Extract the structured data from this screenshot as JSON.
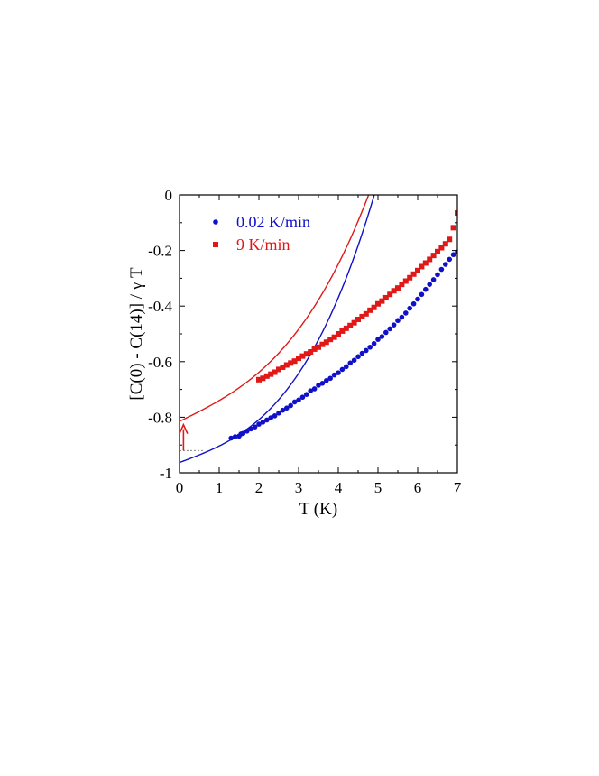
{
  "chart_data": {
    "type": "scatter",
    "xlabel": "T (K)",
    "ylabel": "[C(0) - C(14)] / γ T",
    "xlim": [
      0,
      7
    ],
    "ylim": [
      -1,
      0
    ],
    "xticks": [
      "0",
      "1",
      "2",
      "3",
      "4",
      "5",
      "6",
      "7"
    ],
    "yticks": [
      "0",
      "-0.2",
      "-0.4",
      "-0.6",
      "-0.8",
      "-1"
    ],
    "grid": false,
    "legend_placement": "top-left",
    "series": [
      {
        "name": "0.02 K/min",
        "color": "#1010c8",
        "marker": "circle",
        "fit": {
          "y0": -0.963,
          "a": 0.0535,
          "b": 0.00593
        },
        "x": [
          1.3,
          1.4,
          1.5,
          1.55,
          1.6,
          1.7,
          1.8,
          1.9,
          2.0,
          2.1,
          2.2,
          2.3,
          2.4,
          2.5,
          2.6,
          2.7,
          2.8,
          2.9,
          3.0,
          3.1,
          3.2,
          3.3,
          3.4,
          3.5,
          3.6,
          3.7,
          3.8,
          3.9,
          4.0,
          4.1,
          4.2,
          4.3,
          4.4,
          4.5,
          4.6,
          4.7,
          4.8,
          4.9,
          5.0,
          5.1,
          5.2,
          5.3,
          5.4,
          5.5,
          5.6,
          5.7,
          5.8,
          5.9,
          6.0,
          6.1,
          6.2,
          6.3,
          6.4,
          6.5,
          6.6,
          6.7,
          6.8,
          6.9,
          7.0
        ],
        "y": [
          -0.875,
          -0.87,
          -0.868,
          -0.86,
          -0.858,
          -0.85,
          -0.842,
          -0.835,
          -0.825,
          -0.818,
          -0.81,
          -0.802,
          -0.795,
          -0.785,
          -0.775,
          -0.767,
          -0.758,
          -0.745,
          -0.738,
          -0.728,
          -0.718,
          -0.705,
          -0.698,
          -0.685,
          -0.678,
          -0.668,
          -0.66,
          -0.648,
          -0.64,
          -0.628,
          -0.618,
          -0.605,
          -0.595,
          -0.582,
          -0.57,
          -0.56,
          -0.548,
          -0.535,
          -0.52,
          -0.51,
          -0.495,
          -0.482,
          -0.468,
          -0.452,
          -0.44,
          -0.425,
          -0.408,
          -0.392,
          -0.375,
          -0.358,
          -0.34,
          -0.322,
          -0.305,
          -0.287,
          -0.268,
          -0.25,
          -0.232,
          -0.215,
          -0.205
        ]
      },
      {
        "name": "9 K/min",
        "color": "#e01818",
        "marker": "square",
        "fit": {
          "y0": -0.815,
          "a": 0.0706,
          "b": 0.00443
        },
        "x": [
          2.0,
          2.1,
          2.2,
          2.3,
          2.4,
          2.5,
          2.6,
          2.7,
          2.8,
          2.9,
          3.0,
          3.1,
          3.2,
          3.3,
          3.4,
          3.5,
          3.6,
          3.7,
          3.8,
          3.9,
          4.0,
          4.1,
          4.2,
          4.3,
          4.4,
          4.5,
          4.6,
          4.7,
          4.8,
          4.9,
          5.0,
          5.1,
          5.2,
          5.3,
          5.4,
          5.5,
          5.6,
          5.7,
          5.8,
          5.9,
          6.0,
          6.1,
          6.2,
          6.3,
          6.4,
          6.5,
          6.6,
          6.7,
          6.8,
          6.9,
          7.0
        ],
        "y": [
          -0.665,
          -0.66,
          -0.652,
          -0.645,
          -0.638,
          -0.628,
          -0.62,
          -0.612,
          -0.605,
          -0.598,
          -0.588,
          -0.58,
          -0.572,
          -0.565,
          -0.555,
          -0.548,
          -0.538,
          -0.53,
          -0.52,
          -0.512,
          -0.5,
          -0.49,
          -0.48,
          -0.47,
          -0.46,
          -0.448,
          -0.438,
          -0.428,
          -0.415,
          -0.405,
          -0.392,
          -0.382,
          -0.37,
          -0.358,
          -0.345,
          -0.335,
          -0.322,
          -0.31,
          -0.298,
          -0.285,
          -0.272,
          -0.258,
          -0.245,
          -0.232,
          -0.218,
          -0.204,
          -0.19,
          -0.176,
          -0.16,
          -0.118,
          -0.065
        ]
      }
    ],
    "annotations": {
      "gap_arrow": {
        "x": 0.1,
        "from_y": -0.92,
        "to_y": -0.83,
        "color": "#e01818"
      },
      "dotted_reference_y": -0.92
    }
  }
}
